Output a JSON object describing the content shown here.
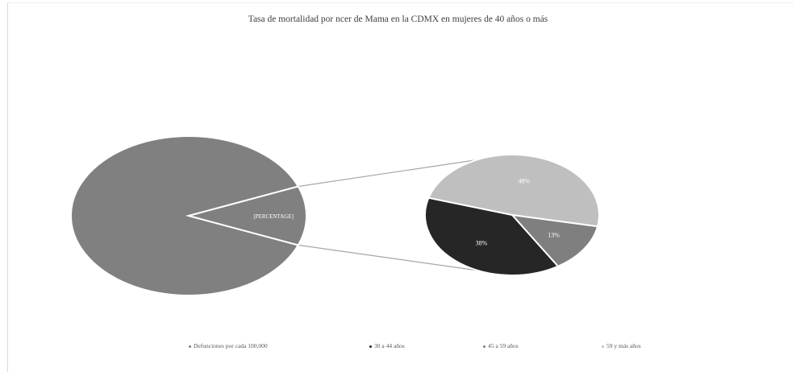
{
  "chart_data": {
    "type": "pie",
    "subtype": "pie-of-pie",
    "title": "Tasa de mortalidad por    ncer de Mama en la CDMX en mujeres de 40 años o más",
    "main_pie": {
      "slices": [
        {
          "name": "Defunciones por cada 100,000",
          "value": 0.88,
          "color": "#808080"
        },
        {
          "name": "30 a 44 años",
          "value": 0.12,
          "color": "#808080",
          "label": "[PERCENTAGE]",
          "expanded": true
        }
      ]
    },
    "secondary_pie": {
      "slices": [
        {
          "name": "59 y más años",
          "value": 48,
          "label": "48%",
          "color": "#bfbfbf"
        },
        {
          "name": "45 a 59 años",
          "value": 13,
          "label": "13%",
          "color": "#7f7f7f"
        },
        {
          "name": "30 a 44 años",
          "value": 38,
          "label": "38%",
          "color": "#262626"
        }
      ]
    },
    "legend": {
      "position": "bottom",
      "items": [
        {
          "label": "Defunciones por cada 100,000",
          "color": "#808080"
        },
        {
          "label": "30 a 44 años",
          "color": "#262626"
        },
        {
          "label": "45 a 59 años",
          "color": "#7f7f7f"
        },
        {
          "label": "59 y más años",
          "color": "#bfbfbf"
        }
      ]
    }
  }
}
